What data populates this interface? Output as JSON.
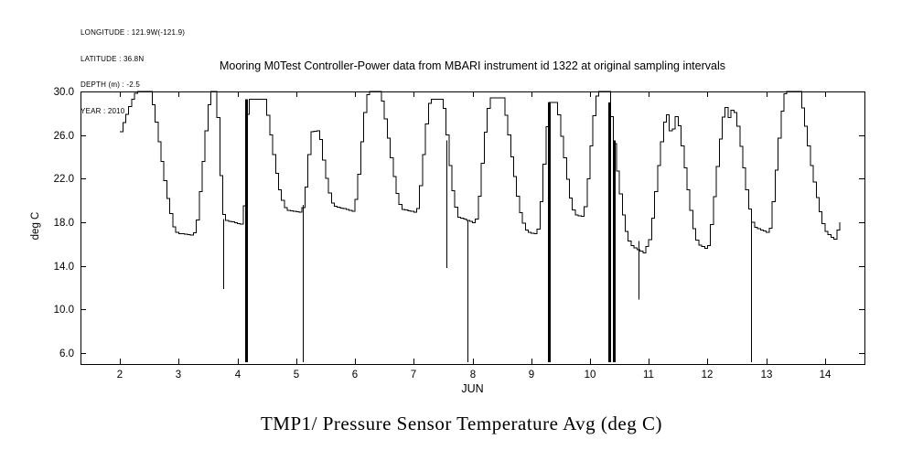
{
  "header": {
    "lines": [
      "LONGITUDE : 121.9W(-121.9)",
      "LATITUDE : 36.8N",
      "DEPTH (m) : -2.5",
      "YEAR : 2010"
    ]
  },
  "chart_data": {
    "type": "line",
    "title": "Mooring M0Test Controller-Power data from MBARI instrument id 1322 at original sampling intervals",
    "caption": "TMP1/ Pressure Sensor Temperature Avg (deg C)",
    "xlabel": "JUN",
    "ylabel": "deg C",
    "xlim": [
      1.33,
      14.67
    ],
    "ylim": [
      5.0,
      30.0
    ],
    "xticks": [
      2,
      3,
      4,
      5,
      6,
      7,
      8,
      9,
      10,
      11,
      12,
      13,
      14
    ],
    "yticks": [
      6,
      10,
      14,
      18,
      22,
      26,
      30
    ],
    "grid": false,
    "legend": "none",
    "line_color": "#000000",
    "background": "#ffffff",
    "series": [
      {
        "name": "TMP1 Pressure Sensor Temperature Avg (deg C)",
        "style": "step",
        "points": [
          [
            2.0,
            26.3
          ],
          [
            2.06,
            27.3
          ],
          [
            2.12,
            28.2
          ],
          [
            2.18,
            29.0
          ],
          [
            2.24,
            29.8
          ],
          [
            2.28,
            30.0
          ],
          [
            2.5,
            30.0
          ],
          [
            2.55,
            28.8
          ],
          [
            2.6,
            27.2
          ],
          [
            2.65,
            25.4
          ],
          [
            2.7,
            23.6
          ],
          [
            2.75,
            21.8
          ],
          [
            2.8,
            20.2
          ],
          [
            2.85,
            18.8
          ],
          [
            2.9,
            17.6
          ],
          [
            2.96,
            17.0
          ],
          [
            3.24,
            16.8
          ],
          [
            3.3,
            18.2
          ],
          [
            3.35,
            20.8
          ],
          [
            3.4,
            23.6
          ],
          [
            3.45,
            26.4
          ],
          [
            3.5,
            28.8
          ],
          [
            3.55,
            30.0
          ],
          [
            3.62,
            30.0
          ],
          [
            3.65,
            27.6
          ],
          [
            3.68,
            24.5
          ],
          [
            3.71,
            21.2
          ],
          [
            3.74,
            19.0
          ],
          [
            3.77,
            18.2
          ],
          [
            4.07,
            17.8
          ],
          [
            4.1,
            19.5
          ],
          [
            4.12,
            23.0
          ],
          [
            4.14,
            26.5
          ],
          [
            4.16,
            29.3
          ],
          [
            4.45,
            29.3
          ],
          [
            4.5,
            27.8
          ],
          [
            4.55,
            26.0
          ],
          [
            4.6,
            24.2
          ],
          [
            4.65,
            22.5
          ],
          [
            4.7,
            21.0
          ],
          [
            4.76,
            19.8
          ],
          [
            4.82,
            19.1
          ],
          [
            5.08,
            18.9
          ],
          [
            5.13,
            20.0
          ],
          [
            5.17,
            22.5
          ],
          [
            5.21,
            24.8
          ],
          [
            5.25,
            26.3
          ],
          [
            5.38,
            26.4
          ],
          [
            5.42,
            24.8
          ],
          [
            5.47,
            23.0
          ],
          [
            5.52,
            21.4
          ],
          [
            5.57,
            20.2
          ],
          [
            5.62,
            19.5
          ],
          [
            5.97,
            19.0
          ],
          [
            6.03,
            21.2
          ],
          [
            6.08,
            24.2
          ],
          [
            6.13,
            27.2
          ],
          [
            6.18,
            29.4
          ],
          [
            6.22,
            30.0
          ],
          [
            6.42,
            30.0
          ],
          [
            6.47,
            28.5
          ],
          [
            6.52,
            26.8
          ],
          [
            6.57,
            25.0
          ],
          [
            6.62,
            23.2
          ],
          [
            6.67,
            21.5
          ],
          [
            6.72,
            20.1
          ],
          [
            6.78,
            19.2
          ],
          [
            7.04,
            18.9
          ],
          [
            7.09,
            20.8
          ],
          [
            7.14,
            23.6
          ],
          [
            7.19,
            26.6
          ],
          [
            7.24,
            28.8
          ],
          [
            7.28,
            29.3
          ],
          [
            7.48,
            29.3
          ],
          [
            7.52,
            27.6
          ],
          [
            7.56,
            25.5
          ],
          [
            7.6,
            23.2
          ],
          [
            7.64,
            21.2
          ],
          [
            7.69,
            19.6
          ],
          [
            7.74,
            18.5
          ],
          [
            8.04,
            17.9
          ],
          [
            8.09,
            19.8
          ],
          [
            8.14,
            22.8
          ],
          [
            8.19,
            25.8
          ],
          [
            8.24,
            28.2
          ],
          [
            8.29,
            29.4
          ],
          [
            8.5,
            29.4
          ],
          [
            8.55,
            27.8
          ],
          [
            8.6,
            26.0
          ],
          [
            8.65,
            24.0
          ],
          [
            8.7,
            22.2
          ],
          [
            8.75,
            20.4
          ],
          [
            8.8,
            18.9
          ],
          [
            8.86,
            17.7
          ],
          [
            8.92,
            17.1
          ],
          [
            9.09,
            16.9
          ],
          [
            9.14,
            19.2
          ],
          [
            9.19,
            22.6
          ],
          [
            9.24,
            26.2
          ],
          [
            9.29,
            29.0
          ],
          [
            9.42,
            29.0
          ],
          [
            9.47,
            27.1
          ],
          [
            9.52,
            25.1
          ],
          [
            9.57,
            23.1
          ],
          [
            9.62,
            21.2
          ],
          [
            9.67,
            19.6
          ],
          [
            9.73,
            18.7
          ],
          [
            9.88,
            18.5
          ],
          [
            9.93,
            20.8
          ],
          [
            9.98,
            23.8
          ],
          [
            10.03,
            26.8
          ],
          [
            10.08,
            29.2
          ],
          [
            10.12,
            30.0
          ],
          [
            10.3,
            30.0
          ],
          [
            10.34,
            28.2
          ],
          [
            10.38,
            26.2
          ],
          [
            10.42,
            24.2
          ],
          [
            10.46,
            22.2
          ],
          [
            10.51,
            20.2
          ],
          [
            10.56,
            18.3
          ],
          [
            10.61,
            16.9
          ],
          [
            10.67,
            16.0
          ],
          [
            10.76,
            15.6
          ],
          [
            10.9,
            15.2
          ],
          [
            11.0,
            16.4
          ],
          [
            11.05,
            18.4
          ],
          [
            11.1,
            20.8
          ],
          [
            11.15,
            23.2
          ],
          [
            11.2,
            25.4
          ],
          [
            11.25,
            27.2
          ],
          [
            11.29,
            28.2
          ],
          [
            11.33,
            26.9
          ],
          [
            11.37,
            25.9
          ],
          [
            11.42,
            27.0
          ],
          [
            11.46,
            27.9
          ],
          [
            11.51,
            26.6
          ],
          [
            11.56,
            24.6
          ],
          [
            11.61,
            22.6
          ],
          [
            11.66,
            20.6
          ],
          [
            11.71,
            18.7
          ],
          [
            11.76,
            17.1
          ],
          [
            11.82,
            16.0
          ],
          [
            11.99,
            15.5
          ],
          [
            12.04,
            17.3
          ],
          [
            12.09,
            19.8
          ],
          [
            12.14,
            22.6
          ],
          [
            12.19,
            25.2
          ],
          [
            12.24,
            27.4
          ],
          [
            12.29,
            28.7
          ],
          [
            12.35,
            27.6
          ],
          [
            12.41,
            28.4
          ],
          [
            12.47,
            27.9
          ],
          [
            12.52,
            26.1
          ],
          [
            12.57,
            24.2
          ],
          [
            12.62,
            22.2
          ],
          [
            12.67,
            20.2
          ],
          [
            12.72,
            18.6
          ],
          [
            12.77,
            17.6
          ],
          [
            13.04,
            17.0
          ],
          [
            13.09,
            19.3
          ],
          [
            13.14,
            22.2
          ],
          [
            13.19,
            25.2
          ],
          [
            13.24,
            27.8
          ],
          [
            13.29,
            29.7
          ],
          [
            13.32,
            30.0
          ],
          [
            13.55,
            30.0
          ],
          [
            13.6,
            28.5
          ],
          [
            13.65,
            26.8
          ],
          [
            13.7,
            25.0
          ],
          [
            13.75,
            23.2
          ],
          [
            13.81,
            21.4
          ],
          [
            13.87,
            19.7
          ],
          [
            13.93,
            18.2
          ],
          [
            13.99,
            17.2
          ],
          [
            14.1,
            16.6
          ],
          [
            14.17,
            16.4
          ],
          [
            14.21,
            17.6
          ],
          [
            14.25,
            18.0
          ]
        ]
      }
    ],
    "dropouts": [
      {
        "day": 3.76,
        "top": 18.3,
        "bottom": 11.9,
        "heavy": false
      },
      {
        "day": 4.14,
        "top": 29.3,
        "bottom": 5.15,
        "heavy": true
      },
      {
        "day": 5.12,
        "top": 19.6,
        "bottom": 5.15,
        "heavy": false
      },
      {
        "day": 7.56,
        "top": 25.5,
        "bottom": 13.8,
        "heavy": false
      },
      {
        "day": 7.92,
        "top": 18.2,
        "bottom": 5.15,
        "heavy": false
      },
      {
        "day": 9.3,
        "top": 29.0,
        "bottom": 5.15,
        "heavy": true
      },
      {
        "day": 10.33,
        "top": 29.0,
        "bottom": 5.15,
        "heavy": true
      },
      {
        "day": 10.4,
        "top": 25.5,
        "bottom": 5.15,
        "heavy": true
      },
      {
        "day": 10.83,
        "top": 16.3,
        "bottom": 10.9,
        "heavy": false
      },
      {
        "day": 12.74,
        "top": 18.6,
        "bottom": 5.15,
        "heavy": false
      }
    ]
  }
}
